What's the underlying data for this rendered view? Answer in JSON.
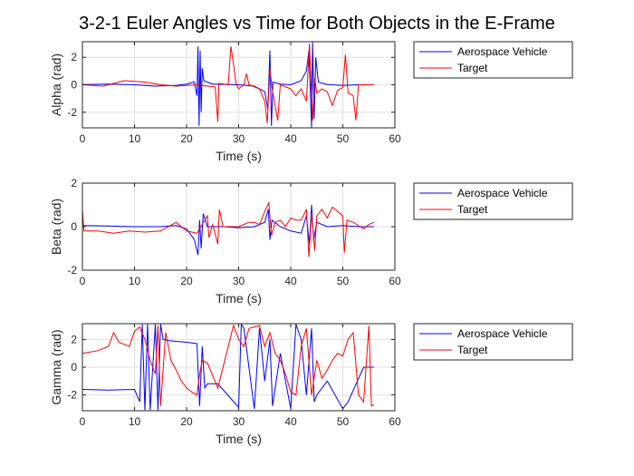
{
  "figure": {
    "title": "3-2-1 Euler Angles vs Time for Both Objects in the E-Frame"
  },
  "chart_data": [
    {
      "type": "line",
      "title": "",
      "xlabel": "Time (s)",
      "ylabel": "Alpha (rad)",
      "xlim": [
        0,
        60
      ],
      "ylim": [
        -3.14,
        3.14
      ],
      "xticks": [
        0,
        10,
        20,
        30,
        40,
        50,
        60
      ],
      "yticks": [
        -2,
        0,
        2
      ],
      "grid": true,
      "legend": "outside-right",
      "series": [
        {
          "name": "Aerospace Vehicle",
          "color": "#0000ff",
          "points": [
            [
              0,
              0.02
            ],
            [
              5,
              0.05
            ],
            [
              10,
              0.0
            ],
            [
              14,
              -0.1
            ],
            [
              18,
              -0.05
            ],
            [
              20,
              0.05
            ],
            [
              21.5,
              0.2
            ],
            [
              22,
              -0.8
            ],
            [
              22.2,
              2.8
            ],
            [
              22.4,
              -3.0
            ],
            [
              22.6,
              2.5
            ],
            [
              22.8,
              -2.0
            ],
            [
              23.0,
              1.2
            ],
            [
              23.3,
              0.3
            ],
            [
              25,
              0.05
            ],
            [
              30,
              0.0
            ],
            [
              33,
              -0.1
            ],
            [
              35,
              -0.5
            ],
            [
              35.6,
              -1.8
            ],
            [
              36.0,
              2.5
            ],
            [
              36.3,
              -3.0
            ],
            [
              36.6,
              0.2
            ],
            [
              38,
              0.05
            ],
            [
              40,
              0.0
            ],
            [
              42,
              0.3
            ],
            [
              43,
              1.0
            ],
            [
              43.5,
              2.5
            ],
            [
              44.0,
              -3.1
            ],
            [
              44.2,
              3.1
            ],
            [
              44.5,
              -2.5
            ],
            [
              44.8,
              2.0
            ],
            [
              45.3,
              0.2
            ],
            [
              47,
              0.02
            ],
            [
              50,
              -0.05
            ],
            [
              53,
              0.0
            ],
            [
              56,
              0.0
            ]
          ]
        },
        {
          "name": "Target",
          "color": "#ff0000",
          "points": [
            [
              0,
              0.0
            ],
            [
              4,
              -0.1
            ],
            [
              8,
              0.3
            ],
            [
              12,
              0.2
            ],
            [
              15,
              0.0
            ],
            [
              18,
              -0.1
            ],
            [
              20,
              -0.05
            ],
            [
              22,
              0.0
            ],
            [
              24,
              -0.1
            ],
            [
              25.5,
              -0.15
            ],
            [
              26,
              -2.7
            ],
            [
              26.2,
              0.1
            ],
            [
              28,
              0.0
            ],
            [
              28.5,
              2.8
            ],
            [
              29,
              1.5
            ],
            [
              29.5,
              0.1
            ],
            [
              30,
              -0.3
            ],
            [
              31,
              0.0
            ],
            [
              31.5,
              0.8
            ],
            [
              32,
              0.0
            ],
            [
              34,
              -0.3
            ],
            [
              35,
              -1.2
            ],
            [
              35.5,
              -2.8
            ],
            [
              36,
              1.2
            ],
            [
              36.4,
              -0.2
            ],
            [
              37.5,
              -2.6
            ],
            [
              38,
              0.0
            ],
            [
              40,
              -0.3
            ],
            [
              41,
              -0.8
            ],
            [
              42,
              -0.3
            ],
            [
              43,
              -1.2
            ],
            [
              43.6,
              3.0
            ],
            [
              44.2,
              -2.6
            ],
            [
              44.6,
              0.5
            ],
            [
              45,
              -0.6
            ],
            [
              46,
              -0.3
            ],
            [
              47,
              -0.5
            ],
            [
              48,
              -1.5
            ],
            [
              49,
              -0.4
            ],
            [
              50,
              -0.2
            ],
            [
              50.5,
              2.2
            ],
            [
              51,
              -0.6
            ],
            [
              52,
              -0.8
            ],
            [
              52.5,
              -2.6
            ],
            [
              53,
              0.0
            ],
            [
              56,
              0.0
            ]
          ]
        }
      ]
    },
    {
      "type": "line",
      "title": "",
      "xlabel": "Time (s)",
      "ylabel": "Beta (rad)",
      "xlim": [
        0,
        60
      ],
      "ylim": [
        -2,
        2
      ],
      "xticks": [
        0,
        10,
        20,
        30,
        40,
        50,
        60
      ],
      "yticks": [
        -2,
        0,
        2
      ],
      "grid": true,
      "legend": "outside-right",
      "series": [
        {
          "name": "Aerospace Vehicle",
          "color": "#0000ff",
          "points": [
            [
              0,
              0.05
            ],
            [
              5,
              0.03
            ],
            [
              10,
              0.0
            ],
            [
              15,
              0.0
            ],
            [
              18,
              0.05
            ],
            [
              20,
              -0.1
            ],
            [
              21.5,
              -0.6
            ],
            [
              22.2,
              -1.3
            ],
            [
              22.5,
              0.3
            ],
            [
              22.8,
              -1.0
            ],
            [
              23.2,
              0.6
            ],
            [
              24,
              0.0
            ],
            [
              27,
              0.0
            ],
            [
              30,
              -0.05
            ],
            [
              33,
              0.0
            ],
            [
              35,
              0.2
            ],
            [
              35.7,
              0.8
            ],
            [
              36.0,
              -0.6
            ],
            [
              36.4,
              0.3
            ],
            [
              38,
              0.0
            ],
            [
              40,
              -0.2
            ],
            [
              42,
              -0.3
            ],
            [
              43,
              0.5
            ],
            [
              43.6,
              -0.8
            ],
            [
              44.0,
              1.0
            ],
            [
              44.4,
              -0.6
            ],
            [
              45,
              0.2
            ],
            [
              47,
              0.0
            ],
            [
              50,
              0.05
            ],
            [
              53,
              0.0
            ],
            [
              56,
              0.0
            ]
          ]
        },
        {
          "name": "Target",
          "color": "#ff0000",
          "points": [
            [
              0,
              0.8
            ],
            [
              0.3,
              -0.2
            ],
            [
              3,
              -0.2
            ],
            [
              6,
              -0.3
            ],
            [
              9,
              -0.2
            ],
            [
              12,
              -0.25
            ],
            [
              15,
              -0.2
            ],
            [
              18,
              0.2
            ],
            [
              20,
              -0.2
            ],
            [
              22,
              -0.3
            ],
            [
              24,
              0.5
            ],
            [
              24.3,
              -0.5
            ],
            [
              25,
              0.1
            ],
            [
              26,
              -0.8
            ],
            [
              26.3,
              0.8
            ],
            [
              27,
              0.0
            ],
            [
              30,
              0.0
            ],
            [
              32,
              0.2
            ],
            [
              33,
              0.2
            ],
            [
              34,
              0.1
            ],
            [
              35,
              0.7
            ],
            [
              35.8,
              1.1
            ],
            [
              36.3,
              -0.4
            ],
            [
              37,
              0.2
            ],
            [
              38,
              0.3
            ],
            [
              39,
              0.0
            ],
            [
              40,
              0.4
            ],
            [
              41,
              0.3
            ],
            [
              42,
              0.3
            ],
            [
              43,
              0.8
            ],
            [
              43.5,
              -1.4
            ],
            [
              44.0,
              0.6
            ],
            [
              44.6,
              -1.1
            ],
            [
              45,
              0.5
            ],
            [
              46,
              0.8
            ],
            [
              47,
              0.4
            ],
            [
              48,
              0.9
            ],
            [
              50,
              0.5
            ],
            [
              50.3,
              -1.2
            ],
            [
              50.8,
              0.3
            ],
            [
              52,
              0.2
            ],
            [
              54,
              -0.1
            ],
            [
              55,
              0.1
            ],
            [
              56,
              0.2
            ]
          ]
        }
      ]
    },
    {
      "type": "line",
      "title": "",
      "xlabel": "Time (s)",
      "ylabel": "Gamma (rad)",
      "xlim": [
        0,
        60
      ],
      "ylim": [
        -3.14,
        3.14
      ],
      "xticks": [
        0,
        10,
        20,
        30,
        40,
        50,
        60
      ],
      "yticks": [
        -2,
        0,
        2
      ],
      "grid": true,
      "legend": "outside-right",
      "series": [
        {
          "name": "Aerospace Vehicle",
          "color": "#0000ff",
          "points": [
            [
              0,
              -1.6
            ],
            [
              5,
              -1.65
            ],
            [
              10,
              -1.6
            ],
            [
              11,
              -2.5
            ],
            [
              11.5,
              3.1
            ],
            [
              12,
              -3.1
            ],
            [
              12.5,
              3.1
            ],
            [
              13,
              -3.1
            ],
            [
              14,
              3.1
            ],
            [
              14.5,
              -3.1
            ],
            [
              15,
              3.1
            ],
            [
              15.5,
              2.0
            ],
            [
              17,
              1.9
            ],
            [
              20,
              1.8
            ],
            [
              22,
              1.7
            ],
            [
              22.5,
              -2.8
            ],
            [
              23,
              1.5
            ],
            [
              23.5,
              -1.5
            ],
            [
              24,
              -1.2
            ],
            [
              26,
              -1.2
            ],
            [
              30,
              -2.9
            ],
            [
              30.5,
              3.1
            ],
            [
              31,
              2.8
            ],
            [
              33,
              -3.0
            ],
            [
              34,
              2.8
            ],
            [
              35,
              -1.0
            ],
            [
              36,
              2.0
            ],
            [
              36.5,
              -2.8
            ],
            [
              38,
              1.0
            ],
            [
              40,
              -3.0
            ],
            [
              41,
              3.1
            ],
            [
              42,
              2.0
            ],
            [
              43,
              -2.0
            ],
            [
              44,
              2.8
            ],
            [
              44.5,
              -2.5
            ],
            [
              45,
              -2.0
            ],
            [
              47,
              -1.0
            ],
            [
              50,
              -3.0
            ],
            [
              51,
              -2.5
            ],
            [
              54,
              0.0
            ],
            [
              56,
              0.0
            ]
          ]
        },
        {
          "name": "Target",
          "color": "#ff0000",
          "points": [
            [
              0,
              1.0
            ],
            [
              3,
              1.2
            ],
            [
              5,
              1.5
            ],
            [
              6,
              2.5
            ],
            [
              7,
              1.8
            ],
            [
              9,
              1.5
            ],
            [
              10,
              2.6
            ],
            [
              11,
              2.9
            ],
            [
              12,
              2.0
            ],
            [
              13,
              0.5
            ],
            [
              14,
              -0.5
            ],
            [
              14.5,
              3.0
            ],
            [
              15,
              -2.8
            ],
            [
              16,
              2.5
            ],
            [
              17,
              0.5
            ],
            [
              18,
              -0.2
            ],
            [
              19,
              -1.0
            ],
            [
              20,
              -1.5
            ],
            [
              21,
              -1.8
            ],
            [
              22,
              -2.0
            ],
            [
              22.5,
              -0.5
            ],
            [
              23,
              0.5
            ],
            [
              24,
              0.3
            ],
            [
              26,
              -1.5
            ],
            [
              28,
              1.5
            ],
            [
              29,
              3.0
            ],
            [
              30,
              2.0
            ],
            [
              31,
              1.5
            ],
            [
              32,
              2.8
            ],
            [
              34,
              3.0
            ],
            [
              35,
              1.5
            ],
            [
              36,
              2.5
            ],
            [
              37,
              1.0
            ],
            [
              38,
              0.5
            ],
            [
              39,
              -0.5
            ],
            [
              40,
              -1.8
            ],
            [
              41,
              -2.0
            ],
            [
              42,
              1.5
            ],
            [
              43,
              2.8
            ],
            [
              44,
              -2.0
            ],
            [
              45,
              0.5
            ],
            [
              46,
              -0.8
            ],
            [
              47,
              -0.2
            ],
            [
              48,
              0.5
            ],
            [
              49,
              1.0
            ],
            [
              50,
              0.8
            ],
            [
              51,
              2.0
            ],
            [
              52,
              2.5
            ],
            [
              53,
              -2.0
            ],
            [
              54,
              -2.5
            ],
            [
              55,
              3.0
            ],
            [
              55.5,
              -2.8
            ],
            [
              56,
              -2.7
            ]
          ]
        }
      ]
    }
  ]
}
